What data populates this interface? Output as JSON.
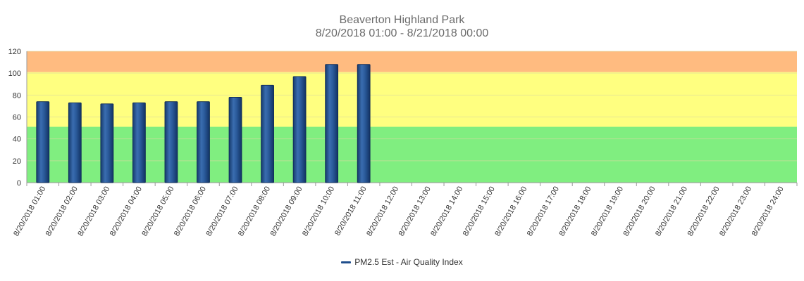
{
  "chart_data": {
    "type": "bar",
    "title": "Beaverton Highland Park",
    "subtitle": "8/20/2018 01:00  -  8/21/2018 00:00",
    "categories": [
      "8/20/2018 01:00",
      "8/20/2018 02:00",
      "8/20/2018 03:00",
      "8/20/2018 04:00",
      "8/20/2018 05:00",
      "8/20/2018 06:00",
      "8/20/2018 07:00",
      "8/20/2018 08:00",
      "8/20/2018 09:00",
      "8/20/2018 10:00",
      "8/20/2018 11:00",
      "8/20/2018 12:00",
      "8/20/2018 13:00",
      "8/20/2018 14:00",
      "8/20/2018 15:00",
      "8/20/2018 16:00",
      "8/20/2018 17:00",
      "8/20/2018 18:00",
      "8/20/2018 19:00",
      "8/20/2018 20:00",
      "8/20/2018 21:00",
      "8/20/2018 22:00",
      "8/20/2018 23:00",
      "8/20/2018 24:00"
    ],
    "series": [
      {
        "name": "PM2.5 Est - Air Quality Index",
        "color": "#1f4e8c",
        "values": [
          74,
          73,
          72,
          73,
          74,
          74,
          78,
          89,
          97,
          108,
          108,
          null,
          null,
          null,
          null,
          null,
          null,
          null,
          null,
          null,
          null,
          null,
          null,
          null
        ]
      }
    ],
    "ylim": [
      0,
      120
    ],
    "yticks": [
      0,
      20,
      40,
      60,
      80,
      100,
      120
    ],
    "bands": [
      {
        "from": 0,
        "to": 51,
        "color": "#80ee80"
      },
      {
        "from": 51,
        "to": 101,
        "color": "#ffff80"
      },
      {
        "from": 101,
        "to": 120,
        "color": "#ffbb80"
      }
    ],
    "grid": true,
    "legend_position": "bottom"
  }
}
